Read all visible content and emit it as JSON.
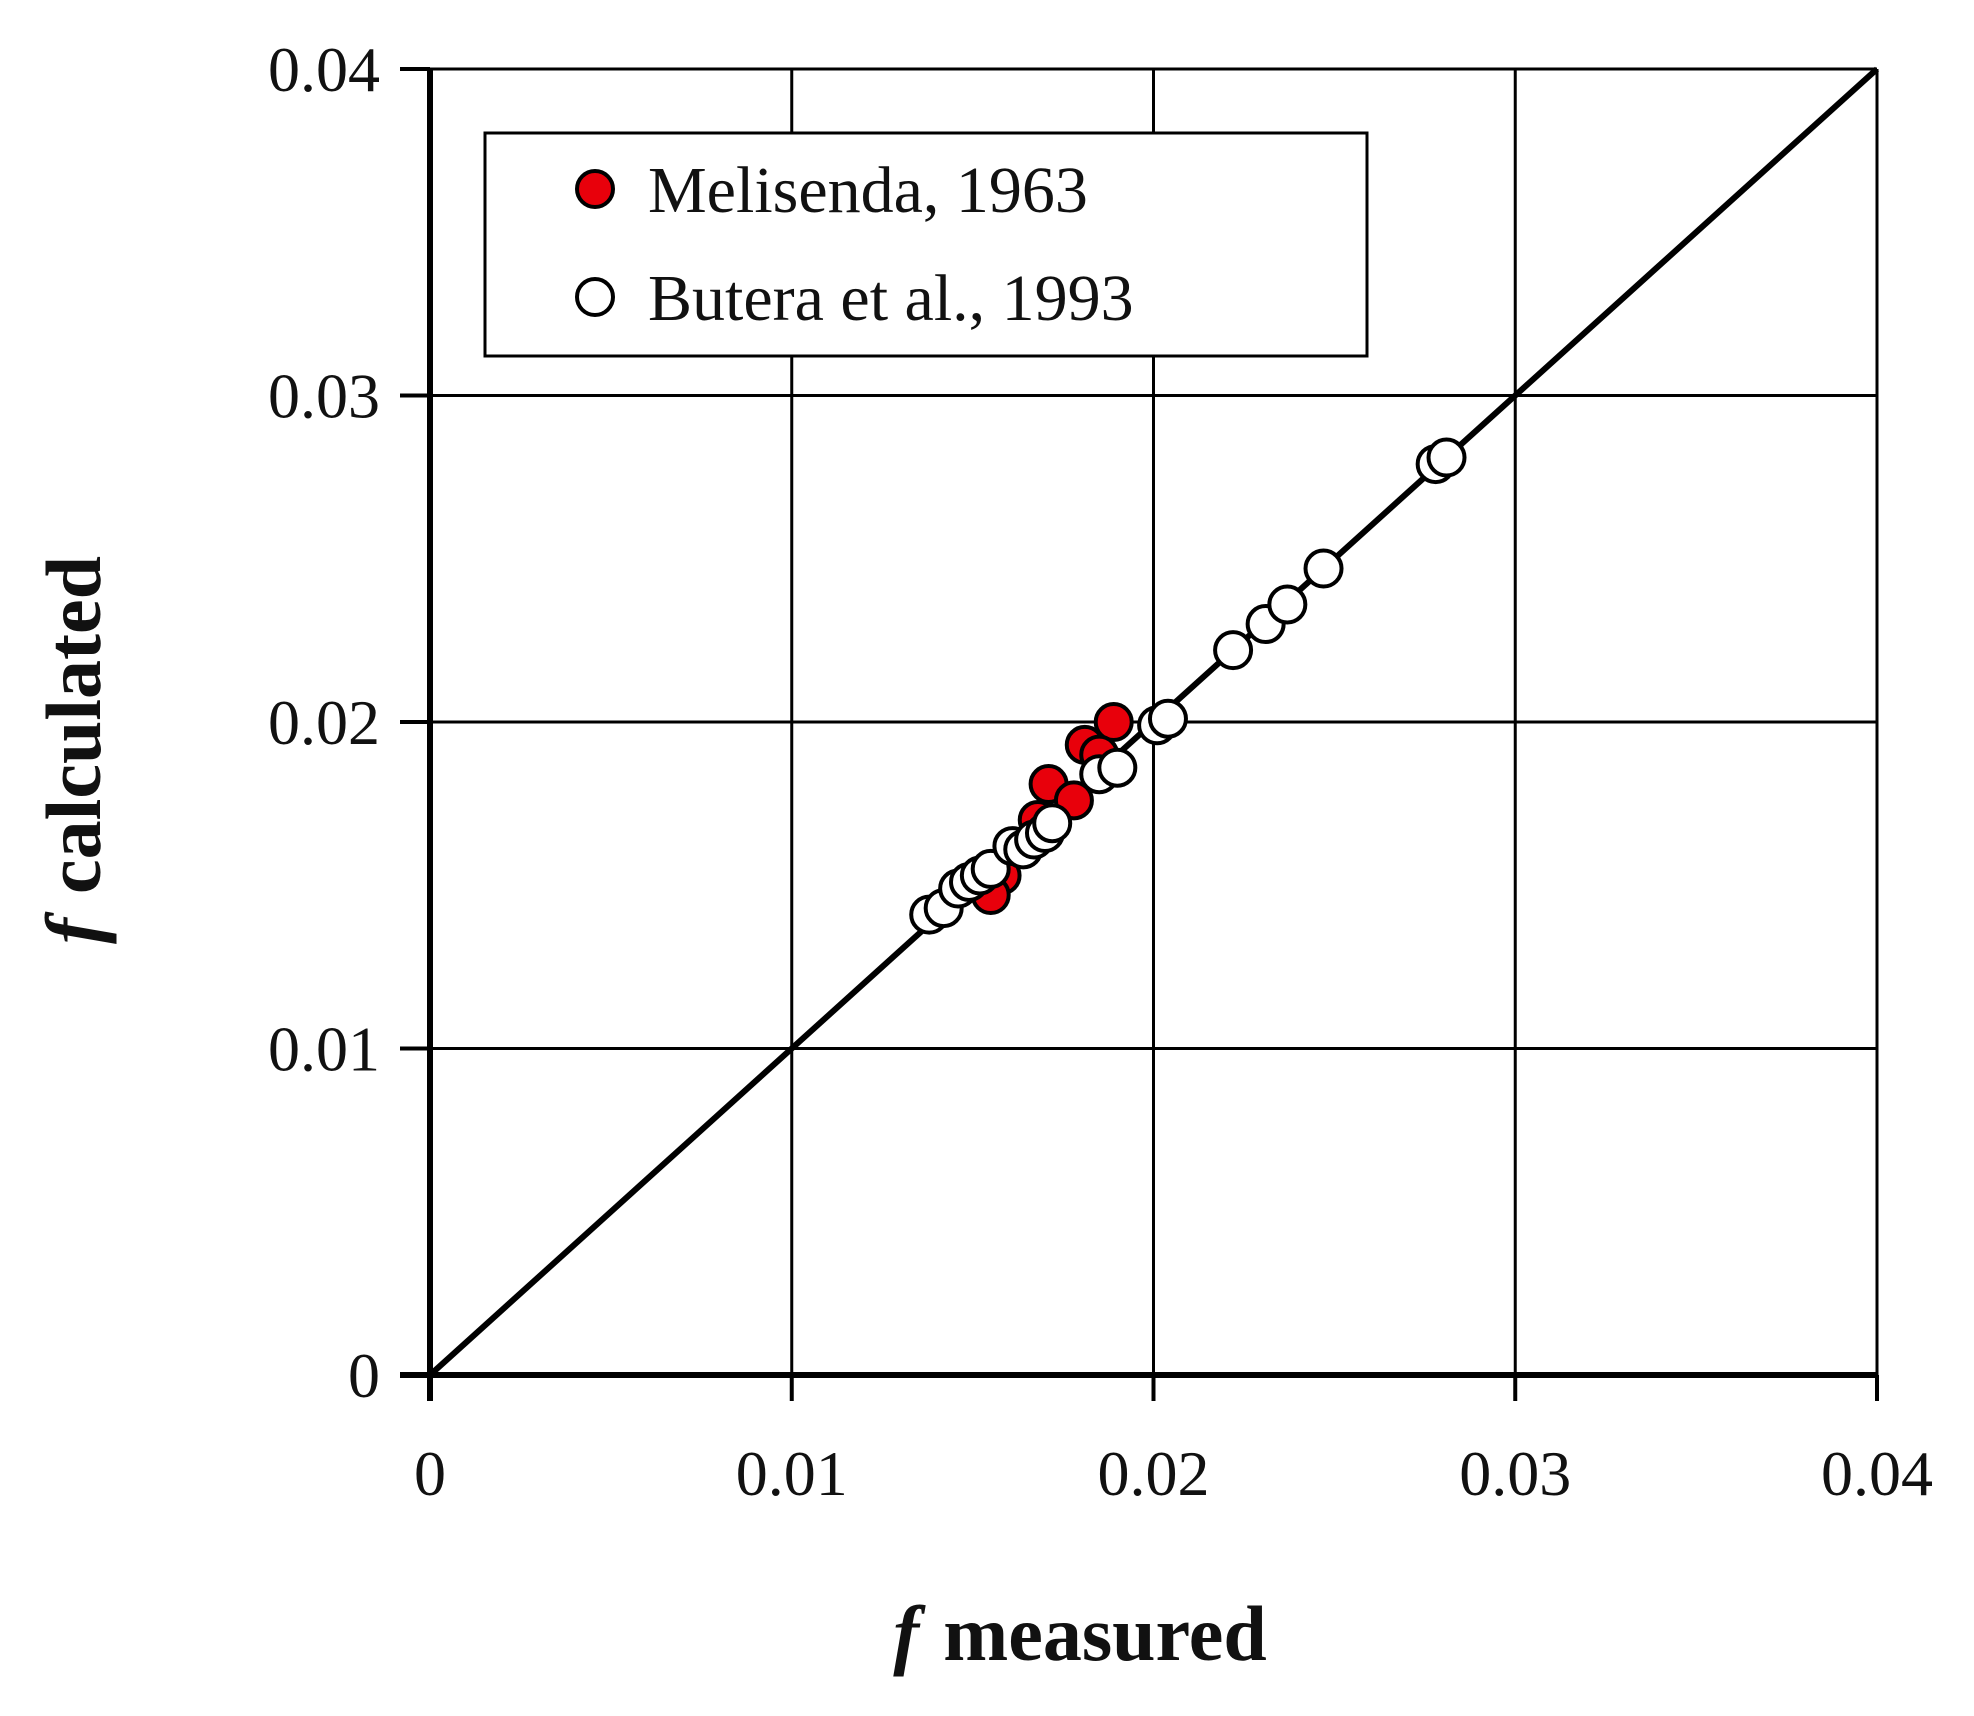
{
  "chart_data": {
    "type": "scatter",
    "title": "",
    "xlabel": {
      "symbol": "f",
      "text": "measured"
    },
    "ylabel": {
      "symbol": "f",
      "text": "calculated"
    },
    "xlim": [
      0,
      0.04
    ],
    "ylim": [
      0,
      0.04
    ],
    "x_ticks": [
      "0",
      "0.01",
      "0.02",
      "0.03",
      "0.04"
    ],
    "y_ticks": [
      "0",
      "0.01",
      "0.02",
      "0.03",
      "0.04"
    ],
    "grid": true,
    "legend_position": "top-left",
    "reference_line": {
      "from": [
        0,
        0
      ],
      "to": [
        0.04,
        0.04
      ],
      "color": "#000000"
    },
    "series": [
      {
        "name": "Melisenda, 1963",
        "marker_fill": "#e8000b",
        "marker_stroke": "#000000",
        "points": [
          {
            "x": 0.0189,
            "y": 0.02
          },
          {
            "x": 0.0181,
            "y": 0.0193
          },
          {
            "x": 0.0185,
            "y": 0.019
          },
          {
            "x": 0.0171,
            "y": 0.0181
          },
          {
            "x": 0.0178,
            "y": 0.0176
          },
          {
            "x": 0.0168,
            "y": 0.017
          },
          {
            "x": 0.0158,
            "y": 0.0153
          },
          {
            "x": 0.0155,
            "y": 0.0147
          }
        ]
      },
      {
        "name": "Butera et al., 1993",
        "marker_fill": "#ffffff",
        "marker_stroke": "#000000",
        "points": [
          {
            "x": 0.0138,
            "y": 0.0141
          },
          {
            "x": 0.0142,
            "y": 0.0143
          },
          {
            "x": 0.0146,
            "y": 0.0149
          },
          {
            "x": 0.0149,
            "y": 0.0151
          },
          {
            "x": 0.0152,
            "y": 0.0153
          },
          {
            "x": 0.0155,
            "y": 0.0155
          },
          {
            "x": 0.0161,
            "y": 0.0162
          },
          {
            "x": 0.0164,
            "y": 0.0161
          },
          {
            "x": 0.0167,
            "y": 0.0164
          },
          {
            "x": 0.017,
            "y": 0.0166
          },
          {
            "x": 0.0172,
            "y": 0.0169
          },
          {
            "x": 0.0185,
            "y": 0.0184
          },
          {
            "x": 0.019,
            "y": 0.0186
          },
          {
            "x": 0.0201,
            "y": 0.0199
          },
          {
            "x": 0.0204,
            "y": 0.0201
          },
          {
            "x": 0.0222,
            "y": 0.0222
          },
          {
            "x": 0.0231,
            "y": 0.023
          },
          {
            "x": 0.0237,
            "y": 0.0236
          },
          {
            "x": 0.0247,
            "y": 0.0247
          },
          {
            "x": 0.0278,
            "y": 0.0279
          },
          {
            "x": 0.0281,
            "y": 0.0281
          }
        ]
      }
    ]
  }
}
